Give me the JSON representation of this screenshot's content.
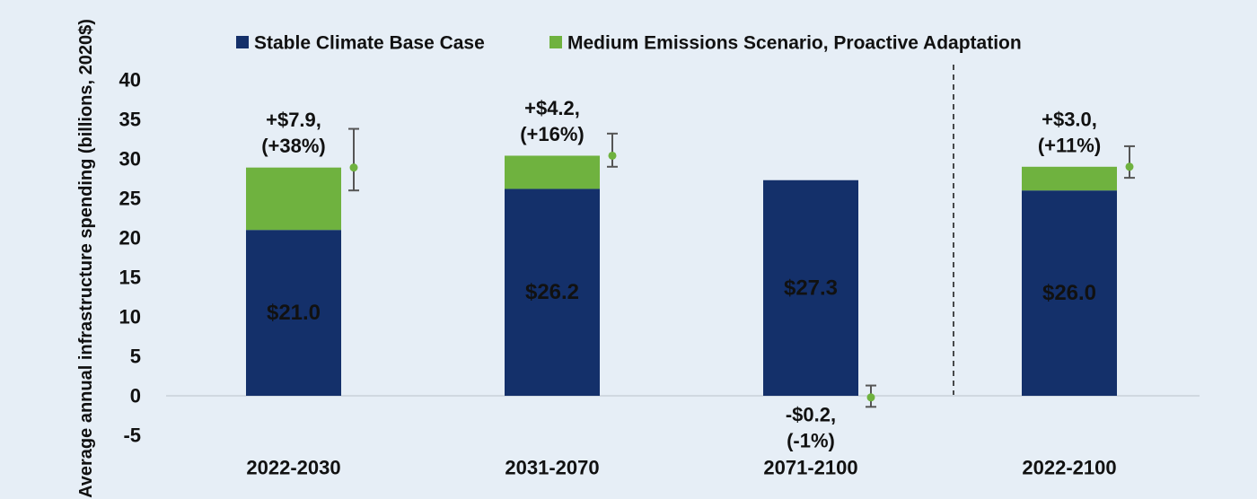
{
  "chart_data": {
    "type": "bar",
    "stacked": true,
    "categories": [
      "2022-2030",
      "2031-2070",
      "2071-2100",
      "2022-2100"
    ],
    "ylabel": "Average annual infrastructure spending (billions, 2020$)",
    "ylim": [
      -5,
      40
    ],
    "yticks": [
      -5,
      0,
      5,
      10,
      15,
      20,
      25,
      30,
      35,
      40
    ],
    "ytick_labels": [
      "-5",
      "0",
      "5",
      "10",
      "15",
      "20",
      "25",
      "30",
      "35",
      "40"
    ],
    "grid": false,
    "legend_position": "top",
    "series": [
      {
        "name": "Stable Climate Base Case",
        "color": "#14306a",
        "values": [
          21.0,
          26.2,
          27.3,
          26.0
        ],
        "labels": [
          "$21.0",
          "$26.2",
          "$27.3",
          "$26.0"
        ]
      },
      {
        "name": "Medium Emissions Scenario, Proactive Adaptation",
        "color": "#6fb23f",
        "values": [
          7.9,
          4.2,
          -0.2,
          3.0
        ],
        "labels": [
          [
            "+$7.9,",
            "(+38%)"
          ],
          [
            "+$4.2,",
            "(+16%)"
          ],
          [
            "-$0.2,",
            "(-1%)"
          ],
          [
            "+$3.0,",
            "(+11%)"
          ]
        ]
      }
    ],
    "error_bars": {
      "color": "#555555",
      "point_color": "#6fb23f",
      "center": [
        28.9,
        30.4,
        -0.2,
        29.0
      ],
      "low": [
        26.0,
        29.0,
        -1.4,
        27.6
      ],
      "high": [
        33.8,
        33.2,
        1.3,
        31.6
      ]
    },
    "divider": {
      "style": "dashed",
      "between": [
        "2071-2100",
        "2022-2100"
      ]
    }
  }
}
